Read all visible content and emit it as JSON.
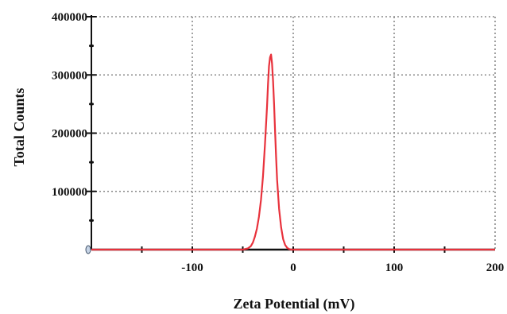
{
  "chart_data": {
    "type": "line",
    "title": "",
    "xlabel": "Zeta Potential (mV)",
    "ylabel": "Total Counts",
    "xlim": [
      -200,
      200
    ],
    "ylim": [
      0,
      400000
    ],
    "x_ticks": [
      -100,
      0,
      100,
      200
    ],
    "x_tick_labels": [
      "-100",
      "0",
      "100",
      "200"
    ],
    "y_ticks": [
      100000,
      200000,
      300000,
      400000
    ],
    "y_tick_labels": [
      "100000",
      "200000",
      "300000",
      "400000"
    ],
    "grid": true,
    "series": [
      {
        "color": "#e8323c",
        "x": [
          -200,
          -50,
          -45,
          -42,
          -40,
          -38,
          -36,
          -34,
          -32,
          -30,
          -28,
          -26,
          -25,
          -24,
          -23,
          -22,
          -21,
          -20,
          -19,
          -18,
          -17,
          -16,
          -14,
          -12,
          -10,
          -8,
          -6,
          -4,
          -2,
          0,
          200
        ],
        "y": [
          0,
          0,
          2000,
          6000,
          12000,
          22000,
          36000,
          56000,
          85000,
          125000,
          180000,
          245000,
          285000,
          315000,
          330000,
          335000,
          320000,
          290000,
          250000,
          205000,
          160000,
          120000,
          70000,
          38000,
          18000,
          8000,
          3000,
          1000,
          0,
          0,
          0
        ]
      }
    ]
  },
  "colors": {
    "line": "#e8323c",
    "axis": "#111111",
    "grid": "#8a8a8a"
  }
}
